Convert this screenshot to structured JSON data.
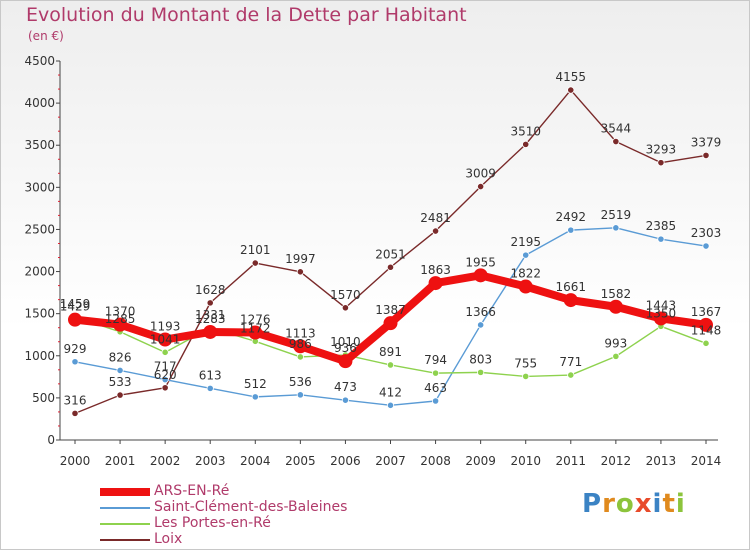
{
  "title": "Evolution du Montant de la Dette par Habitant",
  "unit": "(en €)",
  "logo": "Proxiti",
  "chart_data": {
    "type": "line",
    "x": [
      "2000",
      "2001",
      "2002",
      "2003",
      "2004",
      "2005",
      "2006",
      "2007",
      "2008",
      "2009",
      "2010",
      "2011",
      "2012",
      "2013",
      "2014"
    ],
    "ylim": [
      0,
      4500
    ],
    "yticks": [
      0,
      500,
      1000,
      1500,
      2000,
      2500,
      3000,
      3500,
      4000,
      4500
    ],
    "grid": false,
    "legend_position": "bottom-left",
    "series": [
      {
        "name": "ARS-EN-Ré",
        "color": "#ee1111",
        "values": [
          1429,
          1370,
          1193,
          1283,
          1276,
          1113,
          936,
          1387,
          1863,
          1955,
          1822,
          1661,
          1582,
          1443,
          1367
        ]
      },
      {
        "name": "Saint-Clément-des-Baleines",
        "color": "#5a9bd5",
        "values": [
          929,
          826,
          717,
          613,
          512,
          536,
          473,
          412,
          463,
          1366,
          2195,
          2492,
          2519,
          2385,
          2303
        ]
      },
      {
        "name": "Les Portes-en-Ré",
        "color": "#8ed24e",
        "values": [
          1459,
          1285,
          1041,
          1331,
          1172,
          986,
          1010,
          891,
          794,
          803,
          755,
          771,
          993,
          1350,
          1148
        ]
      },
      {
        "name": "Loix",
        "color": "#7a2a2a",
        "values": [
          316,
          533,
          620,
          1628,
          2101,
          1997,
          1570,
          2051,
          2481,
          3009,
          3510,
          4155,
          3544,
          3293,
          3379
        ]
      }
    ]
  }
}
